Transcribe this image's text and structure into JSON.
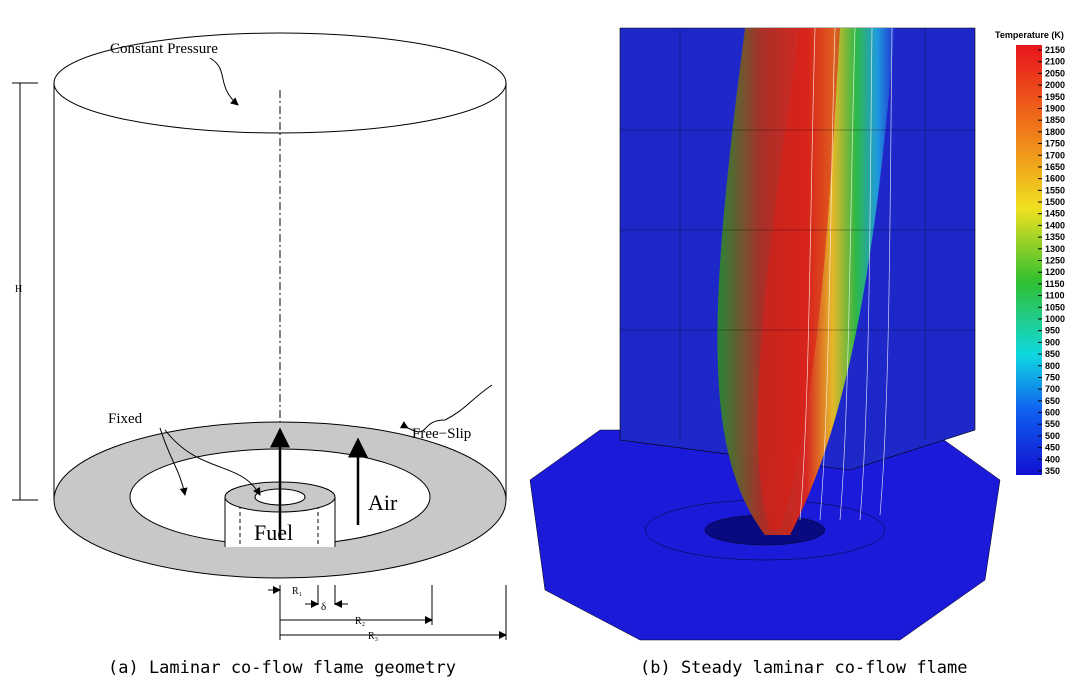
{
  "panel_a": {
    "caption": "(a) Laminar co-flow flame geometry",
    "labels": {
      "constant_pressure": "Constant Pressure",
      "height": "H",
      "fixed": "Fixed",
      "free_slip": "Free−Slip",
      "fuel": "Fuel",
      "air": "Air",
      "r1": "R₁",
      "delta": "δ",
      "r2": "R₂",
      "r3": "R₃"
    }
  },
  "panel_b": {
    "caption": "(b) Steady laminar co-flow flame",
    "colorbar": {
      "title": "Temperature (K)",
      "ticks": [
        2150,
        2100,
        2050,
        2000,
        1950,
        1900,
        1850,
        1800,
        1750,
        1700,
        1650,
        1600,
        1550,
        1500,
        1450,
        1400,
        1350,
        1300,
        1250,
        1200,
        1150,
        1100,
        1050,
        1000,
        950,
        900,
        850,
        800,
        750,
        700,
        650,
        600,
        550,
        500,
        450,
        400,
        350
      ]
    }
  }
}
